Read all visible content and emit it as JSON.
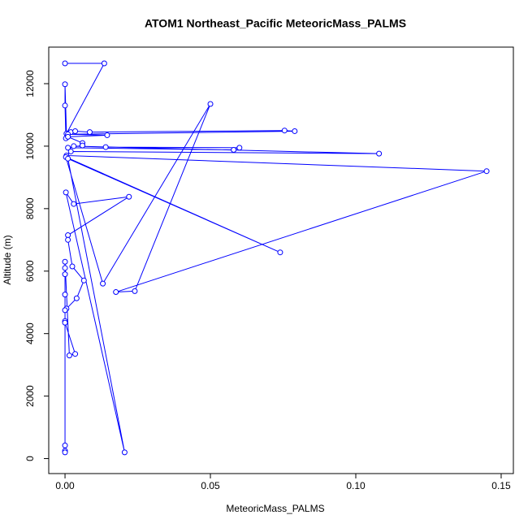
{
  "chart_data": {
    "type": "line",
    "title": "ATOM1 Northeast_Pacific MeteoricMass_PALMS",
    "x_label": "MeteoricMass_PALMS",
    "y_label": "Altitude (m)",
    "color": "#0000ff",
    "marker": "circle",
    "x": [
      0.0,
      0.0135,
      0.0005,
      0.0,
      0.0,
      0.0003,
      0.002,
      0.0035,
      0.0085,
      0.0755,
      0.079,
      0.001,
      0.0145,
      0.001,
      0.006,
      0.006,
      0.001,
      0.058,
      0.06,
      0.014,
      0.003,
      0.108,
      0.002,
      0.0005,
      0.145,
      0.0175,
      0.024,
      0.05,
      0.013,
      0.0003,
      0.074,
      0.001,
      0.0205,
      0.0003,
      0.003,
      0.022,
      0.001,
      0.001,
      0.0025,
      0.0065,
      0.004,
      0.0005,
      0.0,
      0.0,
      0.0,
      0.0035,
      0.0015,
      0.0,
      0.0,
      0.0,
      0.0,
      0.0,
      0.0,
      0.0
    ],
    "y": [
      12650,
      12650,
      10400,
      11980,
      11300,
      10250,
      10450,
      10480,
      10450,
      10500,
      10480,
      10380,
      10350,
      10300,
      10100,
      10020,
      9950,
      9880,
      9950,
      9970,
      10000,
      9760,
      9830,
      9700,
      9200,
      5330,
      5360,
      11350,
      5600,
      9650,
      6600,
      9600,
      200,
      8520,
      8150,
      8380,
      7150,
      7000,
      6150,
      5700,
      5130,
      4800,
      4750,
      4400,
      4350,
      3350,
      3300,
      6300,
      6100,
      5900,
      5250,
      420,
      250,
      200
    ],
    "xlim": [
      -0.0056,
      0.1542
    ],
    "ylim": [
      -480,
      13170
    ],
    "xticks": [
      {
        "value": 0,
        "label": "0.00"
      },
      {
        "value": 0.05,
        "label": "0.05"
      },
      {
        "value": 0.1,
        "label": "0.10"
      },
      {
        "value": 0.15,
        "label": "0.15"
      }
    ],
    "yticks": [
      0,
      2000,
      4000,
      6000,
      8000,
      10000,
      12000
    ]
  }
}
